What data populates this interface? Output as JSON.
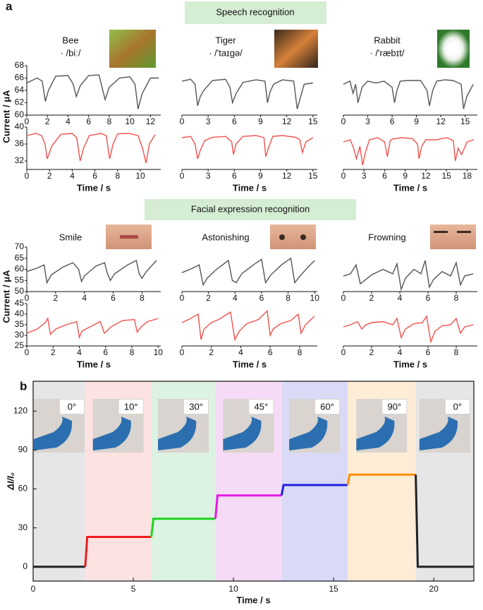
{
  "panel_labels": [
    "a",
    "b"
  ],
  "sections": [
    "Speech recognition",
    "Facial expression recognition"
  ],
  "chart_data": [
    {
      "type": "line",
      "title": "Bee",
      "subtitle": "· /biː/",
      "ylabel": "Current / μA",
      "color": "#555555",
      "x": [
        0,
        1,
        1.5,
        1.8,
        2.1,
        2.8,
        4,
        4.5,
        4.8,
        5.2,
        6,
        7,
        7.3,
        7.6,
        8,
        9,
        10,
        10.5,
        10.8,
        11.2,
        12,
        12.8
      ],
      "values": [
        65.2,
        66,
        65.5,
        62.2,
        64,
        66.3,
        66.4,
        65,
        63,
        64.8,
        66.4,
        66.5,
        64.5,
        62.5,
        64.5,
        66,
        66.2,
        65,
        61,
        63.5,
        66,
        66
      ],
      "xlim": [
        0,
        13
      ],
      "ylim": [
        60,
        68
      ],
      "xticks": [
        0,
        2,
        4,
        6,
        8,
        10,
        12
      ],
      "yticks": [
        60,
        62,
        64,
        66,
        68
      ]
    },
    {
      "type": "line",
      "xlabel": "Time / s",
      "color": "#f0524f",
      "x": [
        0,
        0.8,
        1.3,
        1.6,
        1.8,
        2.2,
        3,
        4,
        4.4,
        4.7,
        5,
        5.5,
        6.5,
        7,
        7.3,
        7.6,
        8,
        9,
        9.8,
        10.2,
        10.5,
        10.8,
        11.3
      ],
      "values": [
        38,
        38.5,
        38,
        36,
        32.5,
        35.5,
        38.3,
        38.5,
        37.5,
        32,
        35,
        38,
        38.5,
        38,
        32.5,
        36,
        38.4,
        38.5,
        38,
        35,
        31.5,
        36,
        38.2
      ],
      "xlim": [
        0,
        11.8
      ],
      "ylim": [
        30,
        40
      ],
      "xticks": [
        0,
        2,
        4,
        6,
        8,
        10
      ],
      "yticks": [
        32,
        36,
        40
      ]
    },
    {
      "type": "line",
      "title": "Tiger",
      "subtitle": "· /'taɪɡə/",
      "color": "#555555",
      "x": [
        0,
        1,
        1.5,
        1.8,
        2.1,
        2.5,
        3.5,
        5,
        5.5,
        5.8,
        6.2,
        7,
        8.5,
        9.5,
        9.8,
        10.1,
        10.5,
        11.5,
        12.8,
        13.2,
        13.5,
        14,
        15
      ],
      "values": [
        65.5,
        65.8,
        65,
        61.5,
        63,
        64,
        65.6,
        65.8,
        64.5,
        62,
        63.5,
        65.3,
        65.7,
        65.5,
        62,
        63.8,
        65,
        65.7,
        65.5,
        61,
        62.5,
        65,
        65.2
      ],
      "xlim": [
        0,
        15.5
      ],
      "ylim": [
        60,
        68
      ],
      "xticks": [
        0,
        3,
        6,
        9,
        12,
        15
      ]
    },
    {
      "type": "line",
      "xlabel": "Time / s",
      "color": "#f0524f",
      "x": [
        0,
        1,
        1.5,
        1.8,
        2.1,
        2.6,
        3.5,
        5,
        5.7,
        5.9,
        6.2,
        7,
        8.5,
        9.4,
        9.6,
        9.9,
        10.4,
        11.5,
        13,
        13.5,
        13.8,
        14.2,
        15
      ],
      "values": [
        37.5,
        37.8,
        36,
        32.5,
        34.5,
        36.8,
        37.6,
        37.8,
        36.5,
        33.5,
        36,
        37.8,
        38,
        37.5,
        33,
        35,
        37.8,
        38,
        37.6,
        37,
        34,
        36.5,
        37.5
      ],
      "xlim": [
        0,
        15.5
      ],
      "ylim": [
        30,
        40
      ],
      "xticks": [
        0,
        3,
        6,
        9,
        12,
        15
      ]
    },
    {
      "type": "line",
      "title": "Rabbit",
      "subtitle": "· /'ræbɪt/",
      "color": "#555555",
      "x": [
        0,
        0.8,
        1.2,
        1.5,
        1.8,
        2.3,
        3,
        4,
        5,
        6,
        6.3,
        6.6,
        7,
        8,
        9.5,
        10.3,
        10.6,
        11,
        11.5,
        12.5,
        13.5,
        14.5,
        14.8,
        15.2,
        15.6,
        16
      ],
      "values": [
        65,
        65.5,
        63.5,
        65,
        62,
        64.5,
        65.5,
        65.2,
        65.5,
        64.5,
        62,
        64,
        65.5,
        65.6,
        65.6,
        64,
        61.5,
        64,
        65.5,
        65.7,
        65.6,
        65,
        61,
        63,
        64,
        65
      ],
      "xlim": [
        0,
        16.5
      ],
      "ylim": [
        60,
        68
      ],
      "xticks": [
        0,
        3,
        6,
        9,
        12,
        15
      ]
    },
    {
      "type": "line",
      "xlabel": "Time / s",
      "color": "#f0524f",
      "x": [
        0,
        1,
        1.5,
        1.9,
        2.4,
        2.8,
        3.2,
        3.8,
        5,
        6,
        6.4,
        6.8,
        7.2,
        8.5,
        10,
        10.8,
        11,
        11.4,
        12,
        13.5,
        15,
        16,
        16.3,
        16.7,
        17.2,
        18,
        19
      ],
      "values": [
        36.5,
        37,
        35,
        32.5,
        35.5,
        31,
        34,
        37,
        37.5,
        36.5,
        33,
        36.8,
        37.2,
        37.5,
        37.3,
        36,
        32.5,
        35.5,
        37,
        37,
        37.5,
        36.8,
        32,
        35,
        33.5,
        36.5,
        37
      ],
      "xlim": [
        0,
        19.5
      ],
      "ylim": [
        30,
        40
      ],
      "xticks": [
        0,
        3,
        6,
        9,
        12,
        15,
        18
      ]
    },
    {
      "type": "line",
      "title": "Smile",
      "ylabel": "Current / μA",
      "color": "#555555",
      "x": [
        0,
        0.7,
        1.2,
        1.4,
        1.7,
        2.5,
        3.2,
        3.6,
        3.8,
        4,
        4.8,
        5.4,
        5.6,
        5.8,
        6.1,
        7,
        7.6,
        7.8,
        8,
        8.3,
        9
      ],
      "values": [
        59,
        60.5,
        62,
        54,
        57.5,
        61,
        63,
        60,
        54.5,
        57,
        61.5,
        63,
        58,
        55,
        58,
        62,
        64,
        58,
        56,
        59,
        64
      ],
      "xlim": [
        0,
        9.3
      ],
      "ylim": [
        50,
        70
      ],
      "xticks": [
        0,
        2,
        4,
        6,
        8
      ],
      "yticks": [
        50,
        55,
        60,
        65,
        70
      ]
    },
    {
      "type": "line",
      "xlabel": "Time / s",
      "color": "#f0524f",
      "x": [
        0,
        0.8,
        1.4,
        1.6,
        1.8,
        2.2,
        3,
        3.8,
        4,
        4.2,
        4.8,
        5.6,
        5.9,
        6.1,
        6.4,
        7.3,
        8.2,
        8.4,
        8.7,
        9.2,
        10
      ],
      "values": [
        31,
        33,
        36,
        38,
        30.5,
        33,
        35,
        36.5,
        29,
        32,
        34,
        36.5,
        31,
        32,
        34,
        37,
        37.5,
        31.5,
        34,
        36.5,
        38
      ],
      "xlim": [
        0,
        10.2
      ],
      "ylim": [
        25,
        45
      ],
      "xticks": [
        0,
        2,
        4,
        6,
        8,
        10
      ],
      "yticks": [
        25,
        30,
        35,
        40,
        45
      ]
    },
    {
      "type": "line",
      "title": "Astonishing",
      "color": "#555555",
      "x": [
        0,
        0.8,
        1.3,
        1.6,
        1.9,
        2.5,
        3.5,
        3.8,
        4.1,
        4.5,
        5.5,
        6,
        6.3,
        6.7,
        7.5,
        8.2,
        8.5,
        8.9,
        9.5,
        10
      ],
      "values": [
        58.5,
        60.5,
        62,
        53,
        56,
        59.5,
        64,
        55,
        54,
        58,
        62.5,
        64.5,
        54,
        57.5,
        62,
        65,
        54,
        57,
        61,
        64
      ],
      "xlim": [
        0,
        10.2
      ],
      "ylim": [
        50,
        70
      ],
      "xticks": [
        0,
        2,
        4,
        6,
        8,
        10
      ]
    },
    {
      "type": "line",
      "xlabel": "Time / s",
      "color": "#f0524f",
      "x": [
        0,
        0.6,
        1.1,
        1.3,
        1.5,
        2,
        2.5,
        3.3,
        3.6,
        3.9,
        4.4,
        5.2,
        5.8,
        6,
        6.2,
        6.7,
        7.4,
        7.9,
        8.1,
        8.4,
        9
      ],
      "values": [
        36,
        38,
        40,
        28,
        33,
        36,
        37.5,
        41,
        28,
        32,
        35.5,
        37.5,
        41.5,
        30,
        33,
        35.5,
        37,
        40,
        31,
        35,
        39
      ],
      "xlim": [
        0,
        9.2
      ],
      "ylim": [
        25,
        45
      ],
      "xticks": [
        0,
        2,
        4,
        6,
        8
      ]
    },
    {
      "type": "line",
      "title": "Frowning",
      "color": "#555555",
      "x": [
        0,
        0.5,
        0.9,
        1.2,
        1.5,
        2,
        2.8,
        3.5,
        3.8,
        4.1,
        4.4,
        5,
        5.5,
        5.8,
        6.1,
        6.4,
        7,
        7.6,
        8,
        8.3,
        8.6,
        9.2
      ],
      "values": [
        57,
        58,
        62,
        53.5,
        55,
        57.5,
        60,
        58,
        62.5,
        51,
        56,
        60,
        58,
        64,
        52,
        55.5,
        59,
        57,
        63,
        53,
        57,
        58
      ],
      "xlim": [
        0,
        9.5
      ],
      "ylim": [
        50,
        70
      ],
      "xticks": [
        0,
        2,
        4,
        6,
        8
      ]
    },
    {
      "type": "line",
      "xlabel": "Time / s",
      "color": "#f0524f",
      "x": [
        0,
        0.5,
        1,
        1.3,
        1.6,
        2,
        2.8,
        3.5,
        3.8,
        4.1,
        4.4,
        5,
        5.6,
        5.9,
        6.2,
        6.5,
        7,
        7.6,
        8,
        8.3,
        8.6,
        9.2
      ],
      "values": [
        34,
        35,
        36.5,
        33,
        35,
        36,
        36.5,
        35,
        38,
        29,
        33,
        35.5,
        36,
        39,
        27,
        32,
        34.5,
        35,
        38,
        31,
        34,
        35
      ],
      "xlim": [
        0,
        9.5
      ],
      "ylim": [
        25,
        45
      ],
      "xticks": [
        0,
        2,
        4,
        6,
        8
      ]
    },
    {
      "type": "step",
      "xlabel": "Time / s",
      "ylabel": "ΔI/I₀",
      "xlim": [
        0,
        22
      ],
      "ylim": [
        -11,
        143
      ],
      "xticks": [
        0,
        5,
        10,
        15,
        20
      ],
      "yticks": [
        0,
        30,
        60,
        90,
        120
      ],
      "regions": [
        {
          "label": "0°",
          "start": 0,
          "end": 2.6,
          "color": "#e6e6e6"
        },
        {
          "label": "10°",
          "start": 2.6,
          "end": 5.9,
          "color": "#fde2e2"
        },
        {
          "label": "30°",
          "start": 5.9,
          "end": 9.1,
          "color": "#dcf2e3"
        },
        {
          "label": "45°",
          "start": 9.1,
          "end": 12.4,
          "color": "#f5dbf6"
        },
        {
          "label": "60°",
          "start": 12.4,
          "end": 15.7,
          "color": "#dadaf7"
        },
        {
          "label": "90°",
          "start": 15.7,
          "end": 19.1,
          "color": "#fdecd6"
        },
        {
          "label": "0°",
          "start": 19.1,
          "end": 22,
          "color": "#e6e6e6"
        }
      ],
      "series": [
        {
          "color": "#222222",
          "x": [
            0,
            2.6
          ],
          "values": [
            0,
            0
          ]
        },
        {
          "color": "#f01d1d",
          "x": [
            2.6,
            2.7,
            5.9
          ],
          "values": [
            0,
            23,
            23
          ]
        },
        {
          "color": "#1ed41e",
          "x": [
            5.9,
            6.0,
            9.1
          ],
          "values": [
            23,
            37,
            37
          ]
        },
        {
          "color": "#e619e6",
          "x": [
            9.1,
            9.2,
            12.4
          ],
          "values": [
            37,
            55,
            55
          ]
        },
        {
          "color": "#1f1fe6",
          "x": [
            12.4,
            12.5,
            15.7
          ],
          "values": [
            55,
            63,
            63
          ]
        },
        {
          "color": "#ff8c00",
          "x": [
            15.7,
            15.8,
            19.1
          ],
          "values": [
            63,
            71,
            71
          ]
        },
        {
          "color": "#222222",
          "x": [
            19.1,
            19.2,
            22
          ],
          "values": [
            71,
            0,
            0
          ]
        }
      ]
    }
  ]
}
